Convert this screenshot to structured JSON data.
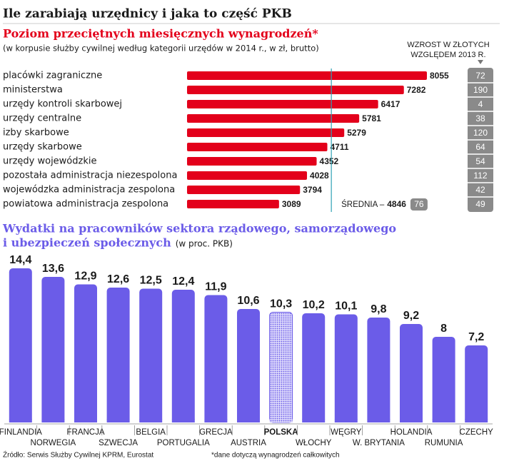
{
  "title": "Ile zarabiają urzędnicy i jaka to część PKB",
  "source": "Źródło: Serwis Służby Cywilnej KPRM, Eurostat",
  "footnote": "*dane dotyczą wynagrodzeń całkowitych",
  "chart_data": [
    {
      "type": "hbar",
      "title": "Poziom przeciętnych miesięcznych wynagrodzeń*",
      "subtitle": "(w korpusie służby cywilnej według kategorii urzędów w 2014 r., w zł, brutto)",
      "categories": [
        "placówki zagraniczne",
        "ministerstwa",
        "urzędy kontroli skarbowej",
        "urzędy centralne",
        "izby skarbowe",
        "urzędy skarbowe",
        "urzędy wojewódzkie",
        "pozostała administracja niezespolona",
        "wojewódzka administracja zespolona",
        "powiatowa administracja zespolona"
      ],
      "values": [
        8055,
        7282,
        6417,
        5781,
        5279,
        4711,
        4352,
        4028,
        3794,
        3089
      ],
      "color": "#e3001b",
      "growth_label": [
        "WZROST W ZŁOTYCH",
        "WZGLĘDEM 2013 R."
      ],
      "growth": [
        72,
        190,
        4,
        38,
        120,
        64,
        54,
        112,
        42,
        49
      ],
      "average_label": "ŚREDNIA –",
      "average": 4846,
      "average_growth": 76,
      "average_color": "#2fa3b5"
    },
    {
      "type": "bar",
      "title": [
        "Wydatki na pracowników sektora rządowego, samorządowego",
        "i ubezpieczeń społecznych"
      ],
      "subtitle": "(w proc. PKB)",
      "categories": [
        "FINLANDIA",
        "NORWEGIA",
        "FRANCJA",
        "SZWECJA",
        "BELGIA",
        "PORTUGALIA",
        "GRECJA",
        "AUSTRIA",
        "POLSKA",
        "WŁOCHY",
        "WĘGRY",
        "W. BRYTANIA",
        "HOLANDIA",
        "RUMUNIA",
        "CZECHY"
      ],
      "values": [
        14.4,
        13.6,
        12.9,
        12.6,
        12.5,
        12.4,
        11.9,
        10.6,
        10.3,
        10.2,
        10.1,
        9.8,
        9.2,
        8,
        7.2
      ],
      "value_labels": [
        "14,4",
        "13,6",
        "12,9",
        "12,6",
        "12,5",
        "12,4",
        "11,9",
        "10,6",
        "10,3",
        "10,2",
        "10,1",
        "9,8",
        "9,2",
        "8",
        "7,2"
      ],
      "color": "#6b5ce8",
      "highlight": "POLSKA"
    }
  ]
}
